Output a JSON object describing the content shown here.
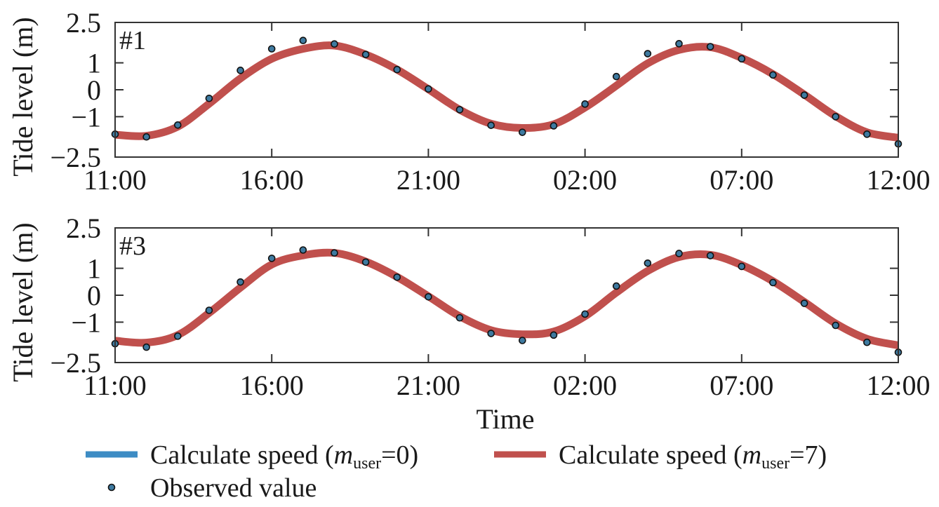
{
  "chart_data": {
    "type": "line",
    "xlabel": "Time",
    "ylabel": "Tide level (m)",
    "x_hours": [
      0,
      1,
      2,
      3,
      4,
      5,
      6,
      7,
      8,
      9,
      10,
      11,
      12,
      13,
      14,
      15,
      16,
      17,
      18,
      19,
      20,
      21,
      22,
      23,
      24,
      25
    ],
    "x_start_label": "11:00",
    "x_range_hours": [
      0,
      25
    ],
    "xtick_hours": [
      0,
      5,
      10,
      15,
      20,
      25
    ],
    "xtick_labels": [
      "11:00",
      "16:00",
      "21:00",
      "02:00",
      "07:00",
      "12:00"
    ],
    "ylim": [
      -2.5,
      2.5
    ],
    "ytick_values": [
      2.5,
      1,
      0,
      -1,
      -2.5
    ],
    "ytick_labels": [
      "2.5",
      "1",
      "0",
      "−1",
      "−2.5"
    ],
    "grid": false,
    "legend_placement": "bottom",
    "legend": [
      {
        "kind": "line",
        "prefix": "Calculate speed (",
        "var": "m",
        "sub": "user",
        "suffix": "=0)",
        "color": "#3d8cc4"
      },
      {
        "kind": "line",
        "prefix": "Calculate speed (",
        "var": "m",
        "sub": "user",
        "suffix": "=7)",
        "color": "#c0504d"
      },
      {
        "kind": "marker",
        "label": "Observed value",
        "color": "#3e7aa0",
        "edge": "#111111"
      }
    ],
    "panels": [
      {
        "label": "#1",
        "series": [
          {
            "name": "Calculate speed (m_user=0)",
            "color": "#3d8cc4",
            "values": [
              -1.63,
              -1.67,
              -1.35,
              -0.5,
              0.45,
              1.18,
              1.55,
              1.65,
              1.34,
              0.79,
              0.06,
              -0.7,
              -1.23,
              -1.45,
              -1.24,
              -0.62,
              0.19,
              1.01,
              1.5,
              1.59,
              1.2,
              0.61,
              -0.15,
              -0.95,
              -1.56,
              -1.8
            ]
          },
          {
            "name": "Calculate speed (m_user=7)",
            "color": "#c0504d",
            "values": [
              -1.67,
              -1.71,
              -1.37,
              -0.52,
              0.42,
              1.15,
              1.52,
              1.64,
              1.31,
              0.75,
              0.02,
              -0.74,
              -1.26,
              -1.42,
              -1.28,
              -0.66,
              0.15,
              0.98,
              1.48,
              1.58,
              1.18,
              0.58,
              -0.18,
              -0.98,
              -1.58,
              -1.78
            ]
          },
          {
            "name": "Observed value",
            "color": "#3e7aa0",
            "values": [
              -1.65,
              -1.75,
              -1.31,
              -0.32,
              0.72,
              1.52,
              1.83,
              1.7,
              1.31,
              0.75,
              0.03,
              -0.74,
              -1.32,
              -1.58,
              -1.34,
              -0.53,
              0.49,
              1.34,
              1.71,
              1.6,
              1.15,
              0.55,
              -0.2,
              -1.0,
              -1.65,
              -2.01
            ]
          }
        ]
      },
      {
        "label": "#3",
        "series": [
          {
            "name": "Calculate speed (m_user=0)",
            "color": "#3d8cc4",
            "values": [
              -1.66,
              -1.72,
              -1.45,
              -0.63,
              0.31,
              1.17,
              1.51,
              1.59,
              1.28,
              0.72,
              -0.01,
              -0.74,
              -1.27,
              -1.42,
              -1.31,
              -0.74,
              0.14,
              0.94,
              1.45,
              1.53,
              1.15,
              0.56,
              -0.21,
              -1.01,
              -1.59,
              -1.84
            ]
          },
          {
            "name": "Calculate speed (m_user=7)",
            "color": "#c0504d",
            "values": [
              -1.69,
              -1.76,
              -1.48,
              -0.66,
              0.28,
              1.14,
              1.48,
              1.57,
              1.25,
              0.68,
              -0.04,
              -0.78,
              -1.3,
              -1.45,
              -1.35,
              -0.78,
              0.1,
              0.9,
              1.42,
              1.5,
              1.12,
              0.52,
              -0.25,
              -1.05,
              -1.62,
              -1.86
            ]
          },
          {
            "name": "Observed value",
            "color": "#3e7aa0",
            "values": [
              -1.8,
              -1.93,
              -1.52,
              -0.56,
              0.49,
              1.37,
              1.68,
              1.57,
              1.23,
              0.67,
              -0.06,
              -0.84,
              -1.42,
              -1.68,
              -1.48,
              -0.7,
              0.34,
              1.19,
              1.55,
              1.47,
              1.07,
              0.47,
              -0.3,
              -1.12,
              -1.75,
              -2.12
            ]
          }
        ]
      }
    ]
  }
}
